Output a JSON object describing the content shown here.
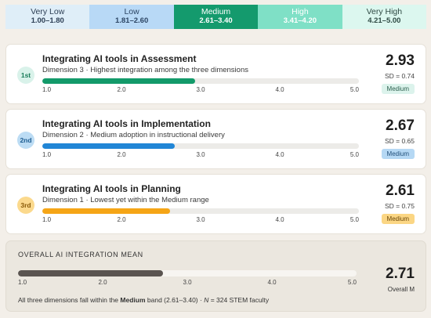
{
  "legend": [
    {
      "label": "Very Low",
      "range": "1.00–1.80",
      "bg": "#dfeef8",
      "fg": "#2d3f55"
    },
    {
      "label": "Low",
      "range": "1.81–2.60",
      "bg": "#b8d9f6",
      "fg": "#2c4563"
    },
    {
      "label": "Medium",
      "range": "2.61–3.40",
      "bg": "#149a6d",
      "fg": "#ffffff"
    },
    {
      "label": "High",
      "range": "3.41–4.20",
      "bg": "#7fe0c6",
      "fg": "#ffffff"
    },
    {
      "label": "Very High",
      "range": "4.21–5.00",
      "bg": "#dcf7ef",
      "fg": "#2f4a44"
    }
  ],
  "scale": {
    "min": 1.0,
    "max": 5.0,
    "ticks": [
      "1.0",
      "2.0",
      "3.0",
      "4.0",
      "5.0"
    ]
  },
  "cards": [
    {
      "rank": "1st",
      "title": "Integrating AI tools in Assessment",
      "subtitle": "Dimension 3 · Highest integration among the three dimensions",
      "mean": "2.93",
      "mean_value": 2.93,
      "sd": "SD = 0.74",
      "band": "Medium",
      "color": "#139a6a",
      "badge_bg": "#d9f2ea",
      "badge_fg": "#1b7c5a",
      "pill_bg": "#dcf3ec",
      "pill_fg": "#2b5e4d"
    },
    {
      "rank": "2nd",
      "title": "Integrating AI tools in Implementation",
      "subtitle": "Dimension 2 · Medium adoption in instructional delivery",
      "mean": "2.67",
      "mean_value": 2.67,
      "sd": "SD = 0.65",
      "band": "Medium",
      "color": "#2186d6",
      "badge_bg": "#bcdcf4",
      "badge_fg": "#1e5d92",
      "pill_bg": "#b5d8f4",
      "pill_fg": "#23507a"
    },
    {
      "rank": "3rd",
      "title": "Integrating AI tools in Planning",
      "subtitle": "Dimension 1 · Lowest yet within the Medium range",
      "mean": "2.61",
      "mean_value": 2.61,
      "sd": "SD = 0.75",
      "band": "Medium",
      "color": "#f5a516",
      "badge_bg": "#fbd98d",
      "badge_fg": "#8a5a08",
      "pill_bg": "#fbd684",
      "pill_fg": "#6b4708"
    }
  ],
  "overall": {
    "title": "OVERALL AI INTEGRATION MEAN",
    "mean": "2.71",
    "mean_value": 2.71,
    "label": "Overall M",
    "note_prefix": "All three dimensions fall within the ",
    "note_band": "Medium",
    "note_middle": " band (2.61–3.40) · ",
    "note_n": "N",
    "note_suffix": " = 324 STEM faculty"
  }
}
